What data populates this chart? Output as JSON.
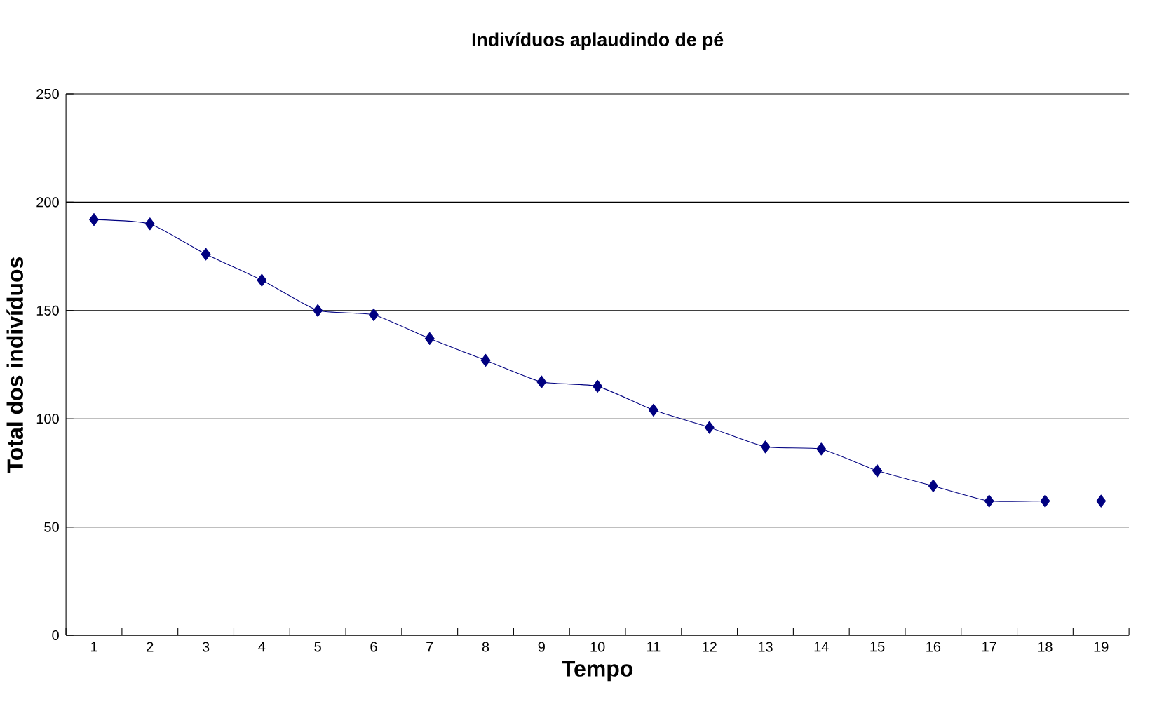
{
  "chart_data": {
    "type": "line",
    "title": "Indivíduos aplaudindo de pé",
    "xlabel": "Tempo",
    "ylabel": "Total dos indivíduos",
    "categories": [
      "1",
      "2",
      "3",
      "4",
      "5",
      "6",
      "7",
      "8",
      "9",
      "10",
      "11",
      "12",
      "13",
      "14",
      "15",
      "16",
      "17",
      "18",
      "19"
    ],
    "series": [
      {
        "color": "#000080",
        "values": [
          192,
          190,
          176,
          164,
          150,
          148,
          137,
          127,
          117,
          115,
          104,
          96,
          87,
          86,
          76,
          69,
          62,
          62,
          62
        ]
      }
    ],
    "ylim": [
      0,
      250
    ],
    "yticks": [
      0,
      50,
      100,
      150,
      200,
      250
    ],
    "grid": "y",
    "marker": "diamond",
    "line_style": "solid"
  }
}
